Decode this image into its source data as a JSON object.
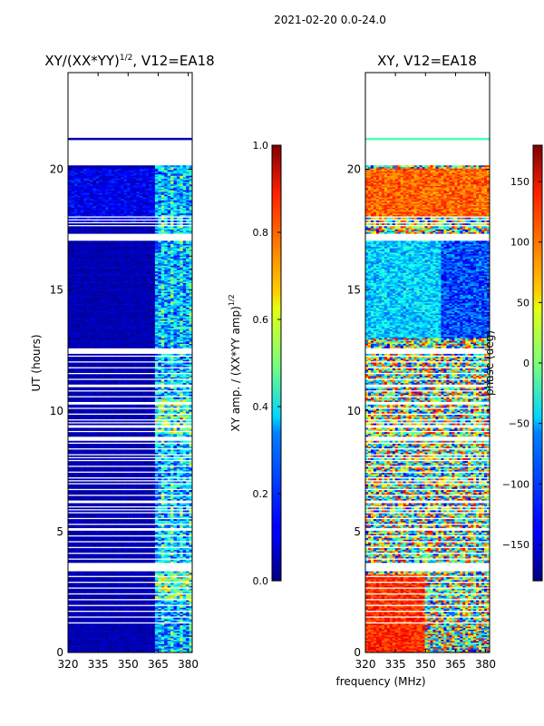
{
  "figure_title": "2021-02-20 0.0-24.0",
  "xlabel_shared": "frequency (MHz)",
  "chart_data": [
    {
      "type": "heatmap",
      "title_main": "XY/(XX*YY)",
      "title_exp": "1/2",
      "title_rest": ", V12=EA18",
      "xlabel": "",
      "ylabel": "UT (hours)",
      "x_range": [
        320,
        382
      ],
      "y_range": [
        0,
        24
      ],
      "x_ticks": [
        320,
        335,
        350,
        365,
        380
      ],
      "y_ticks": [
        0,
        5,
        10,
        15,
        20
      ],
      "colormap": "jet",
      "colorbar": {
        "label_main": "XY amp. / (XX*YY amp)",
        "label_exp": "1/2",
        "range": [
          0,
          1
        ],
        "ticks": [
          "0.0",
          "0.2",
          "0.4",
          "0.6",
          "0.8",
          "1.0"
        ]
      },
      "data_coverage_hours": [
        [
          0,
          20.1
        ],
        [
          21.2,
          21.3
        ]
      ],
      "rfi_band_mhz": [
        363,
        382
      ],
      "notes": "Mostly low amplitude (~0.0-0.1) below 363 MHz; higher, patchy amplitude (0.2-0.8) in 363-382 MHz band"
    },
    {
      "type": "heatmap",
      "title": "XY, V12=EA18",
      "xlabel": "frequency (MHz)",
      "ylabel": "",
      "x_range": [
        320,
        382
      ],
      "y_range": [
        0,
        24
      ],
      "x_ticks": [
        320,
        335,
        350,
        365,
        380
      ],
      "y_ticks": [
        0,
        5,
        10,
        15,
        20
      ],
      "colormap": "jet",
      "colorbar": {
        "label": "phase (deg)",
        "range": [
          -180,
          180
        ],
        "ticks": [
          "−150",
          "−100",
          "−50",
          "0",
          "50",
          "100",
          "150"
        ]
      },
      "data_coverage_hours": [
        [
          0,
          20.1
        ],
        [
          21.2,
          21.3
        ]
      ],
      "notes": "Noisy phase across band; coherent ~100 deg structure 18-20h, ~-100 deg patch 13-17h"
    }
  ],
  "colors": {
    "jet_low": "#00007f",
    "jet_high": "#7f0000",
    "background": "#ffffff"
  }
}
